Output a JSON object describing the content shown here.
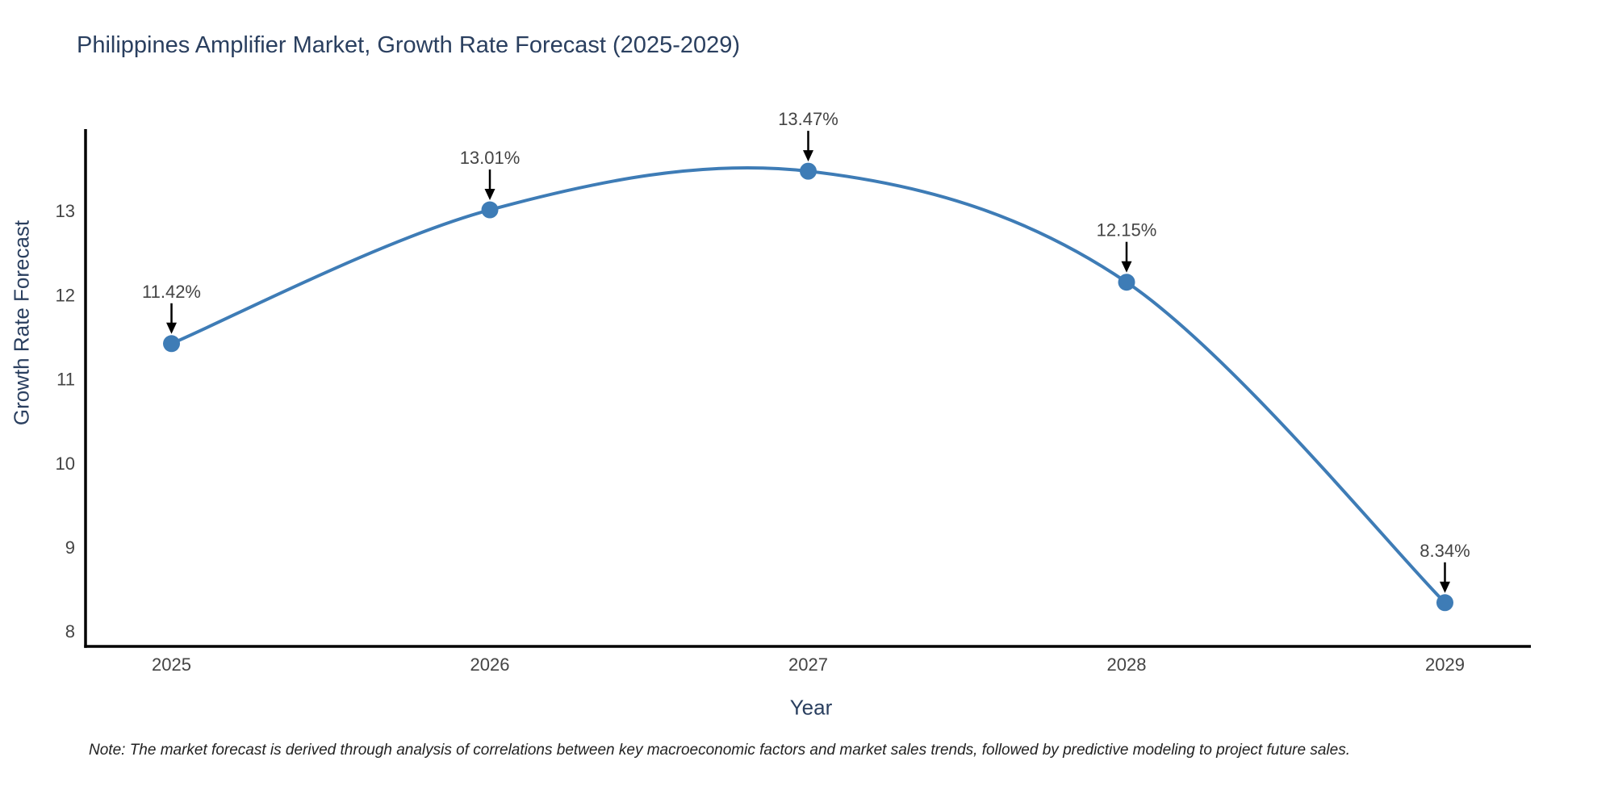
{
  "note": {
    "text": "Note: The market forecast is derived through analysis of correlations between key macroeconomic factors and market sales trends, followed by predictive modeling to project future sales."
  },
  "chart_data": {
    "type": "line",
    "title": "Philippines Amplifier Market, Growth Rate Forecast (2025-2029)",
    "xlabel": "Year",
    "ylabel": "Growth Rate Forecast",
    "x": [
      2025,
      2026,
      2027,
      2028,
      2029
    ],
    "values": [
      11.42,
      13.01,
      13.47,
      12.15,
      8.34
    ],
    "point_labels": [
      "11.42%",
      "13.01%",
      "13.47%",
      "12.15%",
      "8.34%"
    ],
    "line_shape": "spline",
    "markers": true,
    "grid": false,
    "legend": "none",
    "annotation_arrows": true,
    "xticks": [
      2025,
      2026,
      2027,
      2028,
      2029
    ],
    "yticks": [
      8,
      9,
      10,
      11,
      12,
      13
    ],
    "xlim": [
      2024.73,
      2029.27
    ],
    "ylim": [
      7.82,
      13.97
    ],
    "colors": {
      "line": "#3E7CB6",
      "marker": "#3E7CB6",
      "axis": "#000000",
      "title_text": "#2A3F5F",
      "tick_text": "#444444",
      "annotation_text": "#444444",
      "arrow": "#000000",
      "background": "#FFFFFF",
      "note_text": "#222222"
    }
  }
}
